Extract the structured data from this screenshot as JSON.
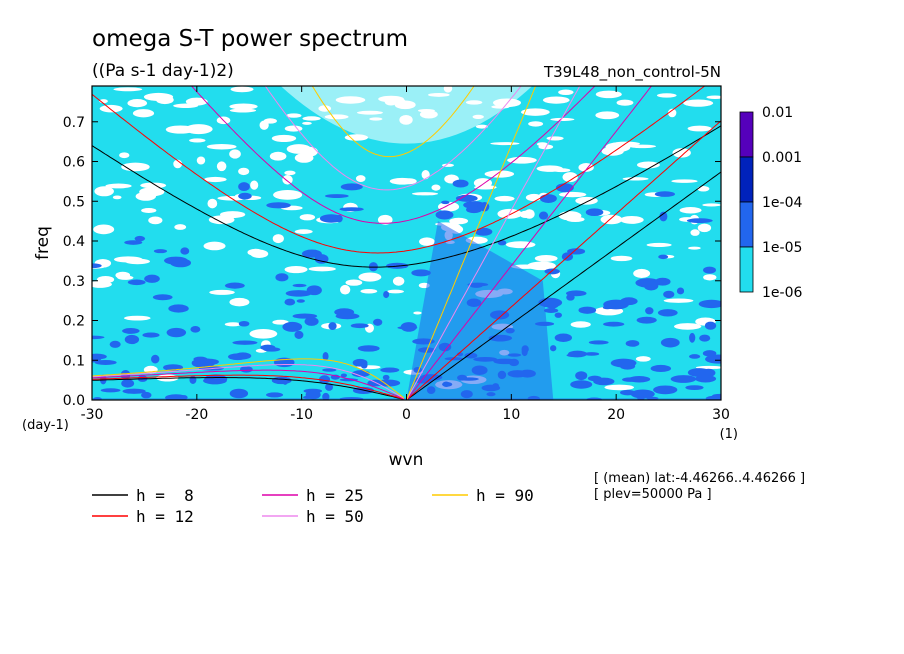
{
  "chart_data": {
    "type": "heatmap",
    "title": "omega S-T power spectrum",
    "subtitle": "((Pa s-1 day-1)2)",
    "run_label": "T39L48_non_control-5N",
    "xlabel": "wvn",
    "ylabel": "freq",
    "x_unit": "(1)",
    "y_unit": "(day-1)",
    "xlim": [
      -30,
      30
    ],
    "ylim": [
      0,
      0.79
    ],
    "xticks": [
      "-30",
      "-20",
      "-10",
      "0",
      "10",
      "20",
      "30"
    ],
    "yticks": [
      "0.0",
      "0.1",
      "0.2",
      "0.3",
      "0.4",
      "0.5",
      "0.6",
      "0.7"
    ],
    "colorbar": {
      "levels": [
        "0.01",
        "0.001",
        "1e-04",
        "1e-05",
        "1e-06"
      ],
      "colors": [
        "#5500bb",
        "#0022bb",
        "#2266ee",
        "#22ddee"
      ]
    },
    "series": [
      {
        "name": "h =  8",
        "color": "#000000"
      },
      {
        "name": "h = 12",
        "color": "#ff0000"
      },
      {
        "name": "h = 25",
        "color": "#dd00aa"
      },
      {
        "name": "h = 50",
        "color": "#ee88ee"
      },
      {
        "name": "h = 90",
        "color": "#ffcc00"
      }
    ],
    "annotations": [
      "[ (mean) lat:-4.46266..4.46266 ]",
      "[ plev=50000 Pa ]"
    ]
  }
}
